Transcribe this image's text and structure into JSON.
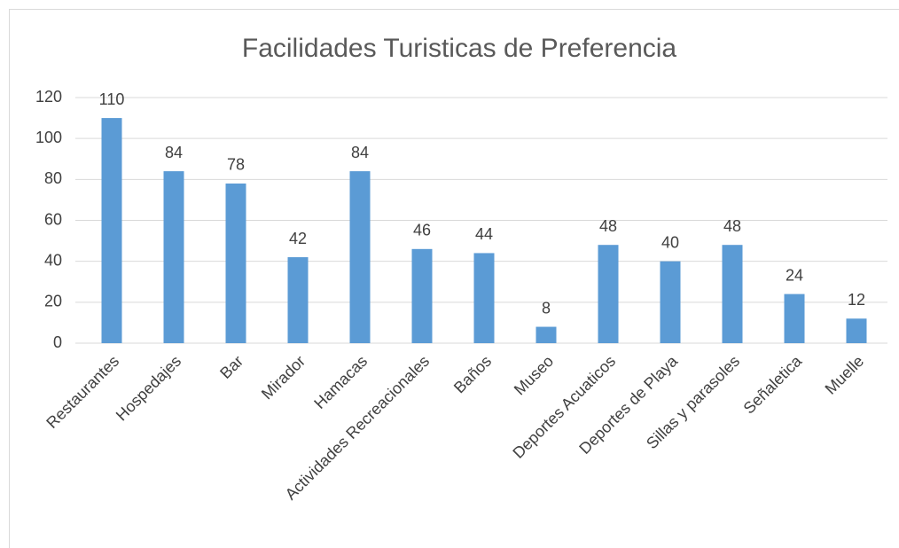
{
  "chart_data": {
    "type": "bar",
    "title": "Facilidades Turisticas de Preferencia",
    "categories": [
      "Restaurantes",
      "Hospedajes",
      "Bar",
      "Mirador",
      "Hamacas",
      "Actividades Recreacionales",
      "Baños",
      "Museo",
      "Deportes Acuaticos",
      "Deportes de Playa",
      "Sillas y parasoles",
      "Señaletica",
      "Muelle"
    ],
    "values": [
      110,
      84,
      78,
      42,
      84,
      46,
      44,
      8,
      48,
      40,
      48,
      24,
      12
    ],
    "color": "#5b9bd5",
    "ylim": [
      0,
      120
    ],
    "yticks": [
      0,
      20,
      40,
      60,
      80,
      100,
      120
    ],
    "grid": true
  }
}
